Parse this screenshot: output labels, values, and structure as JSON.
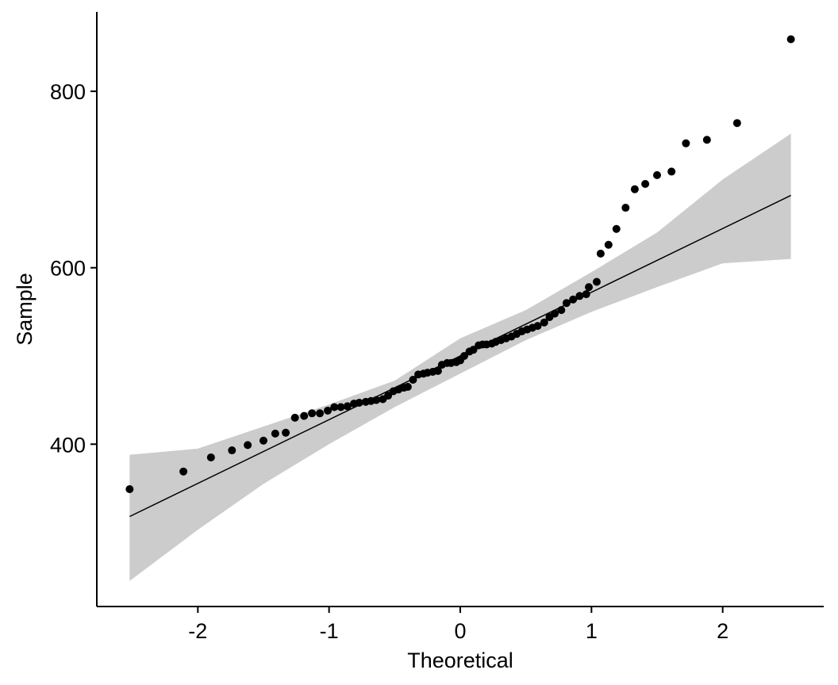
{
  "chart_data": {
    "type": "scatter",
    "xlabel": "Theoretical",
    "ylabel": "Sample",
    "xlim": [
      -2.77,
      2.77
    ],
    "ylim": [
      216,
      890
    ],
    "xticks": [
      -2,
      -1,
      0,
      1,
      2
    ],
    "yticks": [
      400,
      600,
      800
    ],
    "series": [
      {
        "color": "#000000",
        "x": [
          -2.52,
          -2.11,
          -1.9,
          -1.74,
          -1.62,
          -1.5,
          -1.41,
          -1.33,
          -1.26,
          -1.19,
          -1.13,
          -1.07,
          -1.01,
          -0.96,
          -0.91,
          -0.86,
          -0.81,
          -0.77,
          -0.72,
          -0.68,
          -0.64,
          -0.59,
          -0.55,
          -0.51,
          -0.47,
          -0.43,
          -0.4,
          -0.36,
          -0.32,
          -0.28,
          -0.25,
          -0.21,
          -0.17,
          -0.14,
          -0.1,
          -0.07,
          -0.03,
          0,
          0.03,
          0.07,
          0.1,
          0.14,
          0.17,
          0.2,
          0.24,
          0.27,
          0.31,
          0.35,
          0.39,
          0.43,
          0.47,
          0.51,
          0.55,
          0.59,
          0.64,
          0.68,
          0.72,
          0.77,
          0.81,
          0.86,
          0.91,
          0.96,
          0.98,
          1.04,
          1.07,
          1.13,
          1.19,
          1.26,
          1.33,
          1.41,
          1.5,
          1.61,
          1.72,
          1.88,
          2.11,
          2.52
        ],
        "values": [
          349,
          369,
          385,
          393,
          399,
          404,
          412,
          413,
          430,
          432,
          435,
          435,
          438,
          442,
          442,
          443,
          446,
          447,
          448,
          449,
          450,
          451,
          455,
          460,
          462,
          464,
          465,
          473,
          479,
          480,
          481,
          482,
          483,
          490,
          492,
          492,
          493,
          495,
          500,
          505,
          507,
          512,
          513,
          513,
          514,
          516,
          518,
          520,
          522,
          525,
          528,
          530,
          532,
          534,
          538,
          544,
          548,
          552,
          560,
          564,
          568,
          570,
          578,
          584,
          616,
          626,
          644,
          668,
          689,
          695,
          705,
          709,
          741,
          745,
          764,
          859
        ]
      }
    ],
    "reference_line": {
      "color": "#000000",
      "x": [
        -2.52,
        2.52
      ],
      "values": [
        318,
        682
      ]
    },
    "band": {
      "color": "#cccccc",
      "x": [
        -2.52,
        -2,
        -1.5,
        -1,
        -0.5,
        0,
        0.5,
        1,
        1.5,
        2,
        2.52
      ],
      "lower": [
        245,
        303,
        355,
        400,
        442,
        480,
        518,
        550,
        578,
        605,
        610
      ],
      "upper": [
        388,
        395,
        420,
        445,
        472,
        520,
        552,
        595,
        640,
        700,
        752
      ]
    }
  }
}
